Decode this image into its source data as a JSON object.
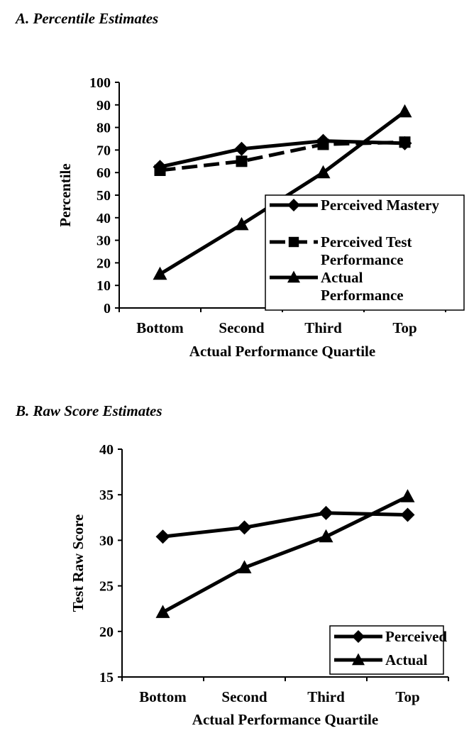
{
  "chart_data": [
    {
      "panel_label": "A.  Percentile Estimates",
      "type": "line",
      "categories": [
        "Bottom",
        "Second",
        "Third",
        "Top"
      ],
      "xlabel": "Actual Performance Quartile",
      "ylabel": "Percentile",
      "ylim": [
        0,
        100
      ],
      "yticks": [
        0,
        10,
        20,
        30,
        40,
        50,
        60,
        70,
        80,
        90,
        100
      ],
      "grid": false,
      "legend_position": "bottom-right",
      "series": [
        {
          "name": "Perceived Mastery",
          "values": [
            62.5,
            70.5,
            74,
            73
          ],
          "marker": "diamond",
          "line": "solid"
        },
        {
          "name": "Perceived Test Performance",
          "values": [
            61,
            65,
            72.5,
            73.5
          ],
          "marker": "square",
          "line": "dashed"
        },
        {
          "name": "Actual Performance",
          "values": [
            15,
            37,
            60,
            87
          ],
          "marker": "triangle",
          "line": "solid"
        }
      ]
    },
    {
      "panel_label": "B.  Raw Score Estimates",
      "type": "line",
      "categories": [
        "Bottom",
        "Second",
        "Third",
        "Top"
      ],
      "xlabel": "Actual Performance Quartile",
      "ylabel": "Test Raw Score",
      "ylim": [
        15,
        40
      ],
      "yticks": [
        15,
        20,
        25,
        30,
        35,
        40
      ],
      "grid": false,
      "legend_position": "bottom-right",
      "series": [
        {
          "name": "Perceived",
          "values": [
            30.4,
            31.4,
            33,
            32.8
          ],
          "marker": "diamond",
          "line": "solid"
        },
        {
          "name": "Actual",
          "values": [
            22.1,
            27,
            30.4,
            34.8
          ],
          "marker": "triangle",
          "line": "solid"
        }
      ]
    }
  ]
}
